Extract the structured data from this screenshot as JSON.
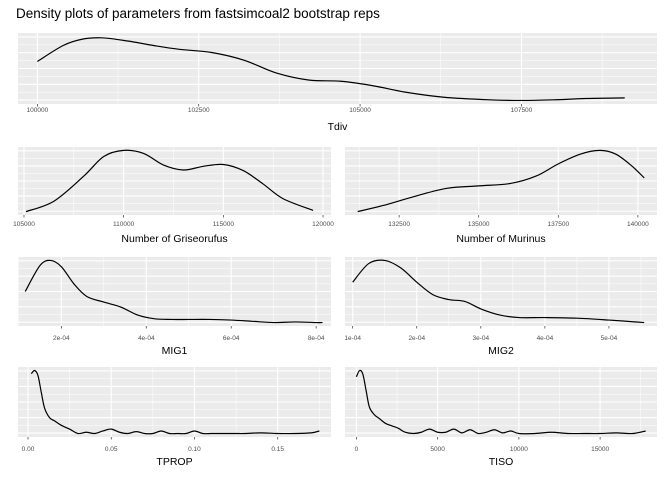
{
  "title": "Density plots of parameters from fastsimcoal2 bootstrap reps",
  "chart_data": [
    {
      "type": "line",
      "xlabel": "Tdiv",
      "xlim": [
        99700,
        109600
      ],
      "ylim": [
        0,
        1
      ],
      "xticks": [
        100000,
        102500,
        105000,
        107500
      ],
      "tick_labels": [
        "100000",
        "102500",
        "105000",
        "107500"
      ],
      "x": [
        100000,
        100400,
        100700,
        101000,
        101400,
        101800,
        102200,
        102700,
        103200,
        103700,
        104200,
        104700,
        105200,
        105700,
        106300,
        107000,
        107500,
        108000,
        108500,
        109100
      ],
      "y": [
        0.61,
        0.86,
        0.96,
        0.98,
        0.93,
        0.86,
        0.8,
        0.75,
        0.63,
        0.43,
        0.32,
        0.3,
        0.23,
        0.13,
        0.05,
        0.01,
        0.0,
        0.01,
        0.03,
        0.04
      ]
    },
    {
      "type": "line",
      "xlabel": "Number of Griseorufus",
      "xlim": [
        104700,
        120400
      ],
      "ylim": [
        0,
        1
      ],
      "xticks": [
        105000,
        110000,
        115000,
        120000
      ],
      "tick_labels": [
        "105000",
        "110000",
        "115000",
        "120000"
      ],
      "x": [
        105100,
        106500,
        108000,
        109000,
        110000,
        111000,
        112000,
        113000,
        114000,
        115000,
        116000,
        117000,
        118000,
        119500
      ],
      "y": [
        0.0,
        0.17,
        0.58,
        0.9,
        1.0,
        0.95,
        0.76,
        0.68,
        0.74,
        0.77,
        0.67,
        0.45,
        0.21,
        0.02
      ]
    },
    {
      "type": "line",
      "xlabel": "Number of Murinus",
      "xlim": [
        130800,
        140600
      ],
      "ylim": [
        0,
        1
      ],
      "xticks": [
        132500,
        135000,
        137500,
        140000
      ],
      "tick_labels": [
        "132500",
        "135000",
        "137500",
        "140000"
      ],
      "x": [
        131200,
        132000,
        133000,
        134000,
        135000,
        136000,
        136800,
        137500,
        138200,
        138800,
        139300,
        139800,
        140200
      ],
      "y": [
        0.0,
        0.1,
        0.25,
        0.38,
        0.42,
        0.46,
        0.58,
        0.78,
        0.94,
        1.0,
        0.94,
        0.75,
        0.55
      ]
    },
    {
      "type": "line",
      "xlabel": "MIG1",
      "xlim": [
        9.8e-05,
        0.000835
      ],
      "ylim": [
        0,
        1
      ],
      "xticks": [
        0.0002,
        0.0004,
        0.0006,
        0.0008
      ],
      "tick_labels": [
        "2e-04",
        "4e-04",
        "6e-04",
        "8e-04"
      ],
      "x": [
        0.000115,
        0.00015,
        0.000175,
        0.0002,
        0.00023,
        0.00026,
        0.0003,
        0.00034,
        0.00038,
        0.00042,
        0.00046,
        0.0005,
        0.00055,
        0.0006,
        0.00065,
        0.0007,
        0.00075,
        0.0008,
        0.000815
      ],
      "y": [
        0.5,
        0.92,
        1.0,
        0.9,
        0.62,
        0.42,
        0.33,
        0.25,
        0.12,
        0.06,
        0.05,
        0.05,
        0.05,
        0.04,
        0.02,
        0.0,
        0.01,
        0.0,
        0.0
      ]
    },
    {
      "type": "line",
      "xlabel": "MIG2",
      "xlim": [
        8.8e-05,
        0.000575
      ],
      "ylim": [
        0,
        1
      ],
      "xticks": [
        0.0001,
        0.0002,
        0.0003,
        0.0004,
        0.0005
      ],
      "tick_labels": [
        "1e-04",
        "2e-04",
        "3e-04",
        "4e-04",
        "5e-04"
      ],
      "x": [
        0.0001,
        0.000125,
        0.00015,
        0.000175,
        0.0002,
        0.000225,
        0.00025,
        0.000275,
        0.0003,
        0.00033,
        0.00036,
        0.0004,
        0.00045,
        0.0005,
        0.000555
      ],
      "y": [
        0.65,
        0.95,
        1.0,
        0.88,
        0.65,
        0.45,
        0.37,
        0.34,
        0.22,
        0.12,
        0.08,
        0.08,
        0.07,
        0.04,
        0.0
      ]
    },
    {
      "type": "line",
      "xlabel": "TPROP",
      "xlim": [
        -0.006,
        0.182
      ],
      "ylim": [
        0,
        1
      ],
      "xticks": [
        0.0,
        0.05,
        0.1,
        0.15
      ],
      "tick_labels": [
        "0.00",
        "0.05",
        "0.10",
        "0.15"
      ],
      "x": [
        0.002,
        0.004,
        0.006,
        0.008,
        0.01,
        0.013,
        0.016,
        0.02,
        0.025,
        0.03,
        0.035,
        0.04,
        0.045,
        0.05,
        0.055,
        0.06,
        0.065,
        0.07,
        0.075,
        0.08,
        0.085,
        0.09,
        0.095,
        0.1,
        0.105,
        0.11,
        0.115,
        0.12,
        0.125,
        0.13,
        0.14,
        0.15,
        0.16,
        0.17,
        0.175
      ],
      "y": [
        0.95,
        1.0,
        0.92,
        0.65,
        0.4,
        0.25,
        0.2,
        0.13,
        0.07,
        0.0,
        0.02,
        0.0,
        0.04,
        0.07,
        0.02,
        0.0,
        0.03,
        0.0,
        0.0,
        0.04,
        0.0,
        0.0,
        0.0,
        0.04,
        0.0,
        0.0,
        0.0,
        0.0,
        0.0,
        0.0,
        0.01,
        0.0,
        0.0,
        0.01,
        0.04
      ]
    },
    {
      "type": "line",
      "xlabel": "TISO",
      "xlim": [
        -700,
        18500
      ],
      "ylim": [
        0,
        1
      ],
      "xticks": [
        0,
        5000,
        10000,
        15000
      ],
      "tick_labels": [
        "0",
        "5000",
        "10000",
        "15000"
      ],
      "x": [
        0,
        200,
        400,
        600,
        800,
        1100,
        1400,
        1800,
        2200,
        2600,
        3000,
        3500,
        4000,
        4500,
        5000,
        5500,
        6000,
        6500,
        7000,
        7500,
        8000,
        8500,
        9000,
        9500,
        10000,
        11000,
        12000,
        13000,
        14000,
        15000,
        16000,
        17000,
        17800
      ],
      "y": [
        0.9,
        1.0,
        0.94,
        0.68,
        0.42,
        0.3,
        0.24,
        0.16,
        0.12,
        0.08,
        0.02,
        0.0,
        0.02,
        0.07,
        0.02,
        0.02,
        0.07,
        0.01,
        0.06,
        0.0,
        0.02,
        0.06,
        0.01,
        0.04,
        0.0,
        0.0,
        0.02,
        0.0,
        0.0,
        0.0,
        0.01,
        0.0,
        0.04
      ]
    }
  ]
}
